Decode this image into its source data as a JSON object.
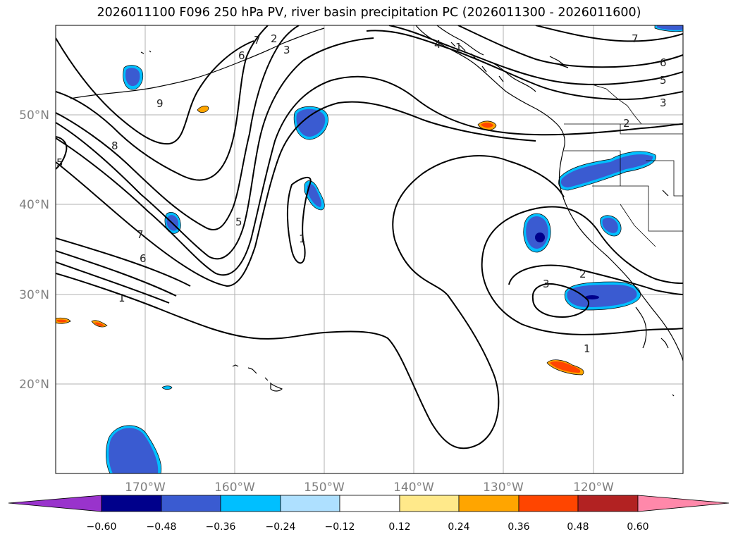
{
  "title": "2026011100 F096 250 hPa PV, river basin precipitation PC (2026011300 - 2026011600)",
  "map": {
    "lon_labels": [
      "170°W",
      "160°W",
      "150°W",
      "140°W",
      "130°W",
      "120°W"
    ],
    "lat_labels": [
      "50°N",
      "40°N",
      "30°N",
      "20°N"
    ],
    "contour_labels": [
      "1",
      "2",
      "3",
      "4",
      "5",
      "6",
      "7",
      "8",
      "9",
      "1",
      "2",
      "3",
      "5",
      "6",
      "7",
      "1",
      "3",
      "2",
      "1",
      "5",
      "6",
      "7"
    ],
    "grid_color": "#b0b0b0",
    "coast_color": "#000000"
  },
  "colorbar": {
    "ticks": [
      "−0.60",
      "−0.48",
      "−0.36",
      "−0.24",
      "−0.12",
      "0.12",
      "0.24",
      "0.36",
      "0.48",
      "0.60"
    ],
    "colors": [
      "#9933cc",
      "#00008b",
      "#3a5bd1",
      "#00bfff",
      "#aee0ff",
      "#ffffff",
      "#ffe98a",
      "#ffa500",
      "#ff4500",
      "#b22222",
      "#ff88aa"
    ]
  }
}
